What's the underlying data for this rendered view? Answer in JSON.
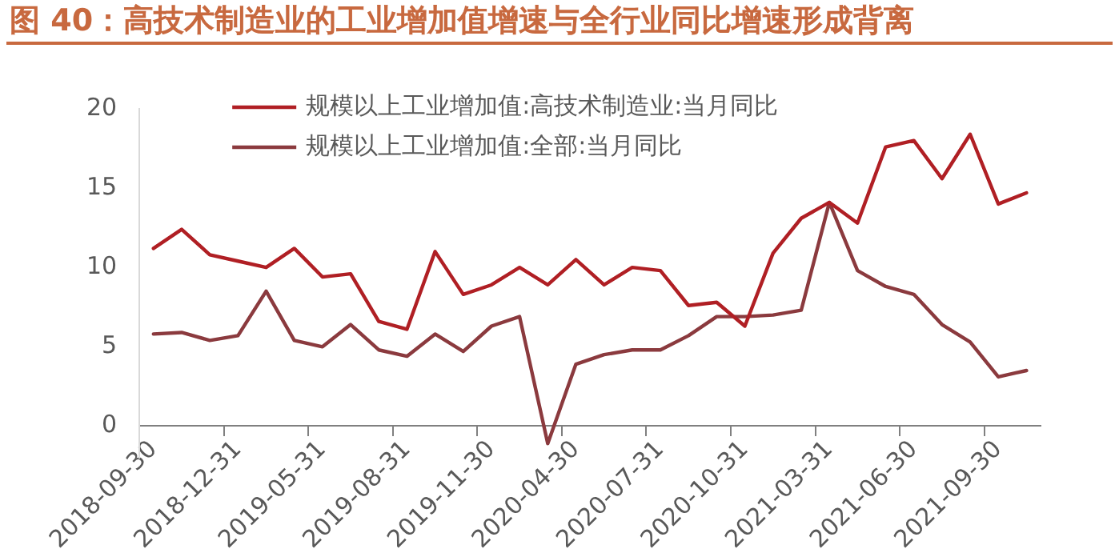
{
  "chart_data": {
    "type": "line",
    "title": "图 40：高技术制造业的工业增加值增速与全行业同比增速形成背离",
    "categories": [
      "2018-09-30",
      null,
      null,
      "2018-12-31",
      null,
      null,
      "2019-05-31",
      null,
      null,
      "2019-08-31",
      null,
      null,
      "2019-11-30",
      null,
      null,
      "2020-04-30",
      null,
      null,
      "2020-07-31",
      null,
      null,
      "2020-10-31",
      null,
      null,
      "2021-03-31",
      null,
      null,
      "2021-06-30",
      null,
      null,
      "2021-09-30",
      null
    ],
    "series": [
      {
        "name": "规模以上工业增加值:高技术制造业:当月同比",
        "color": "#b01f24",
        "values": [
          11.2,
          12.4,
          10.8,
          10.4,
          10.0,
          11.2,
          9.4,
          9.6,
          6.6,
          6.1,
          11.0,
          8.3,
          8.9,
          10.0,
          8.9,
          10.5,
          8.9,
          10.0,
          9.8,
          7.6,
          7.8,
          6.3,
          10.9,
          13.1,
          14.1,
          12.8,
          17.6,
          18.0,
          15.6,
          18.4,
          14.0,
          14.7
        ]
      },
      {
        "name": "规模以上工业增加值:全部:当月同比",
        "color": "#8b3a3e",
        "values": [
          5.8,
          5.9,
          5.4,
          5.7,
          8.5,
          5.4,
          5.0,
          6.4,
          4.8,
          4.4,
          5.8,
          4.7,
          6.3,
          6.9,
          -1.1,
          3.9,
          4.5,
          4.8,
          4.8,
          5.7,
          6.9,
          6.9,
          7.0,
          7.3,
          14.1,
          9.8,
          8.8,
          8.3,
          6.4,
          5.3,
          3.1,
          3.5
        ]
      }
    ],
    "ylim": [
      -2,
      20
    ],
    "yticks": [
      0,
      5,
      10,
      15,
      20
    ],
    "grid": false,
    "legend": "top",
    "marker": "none",
    "line_style": "solid"
  }
}
